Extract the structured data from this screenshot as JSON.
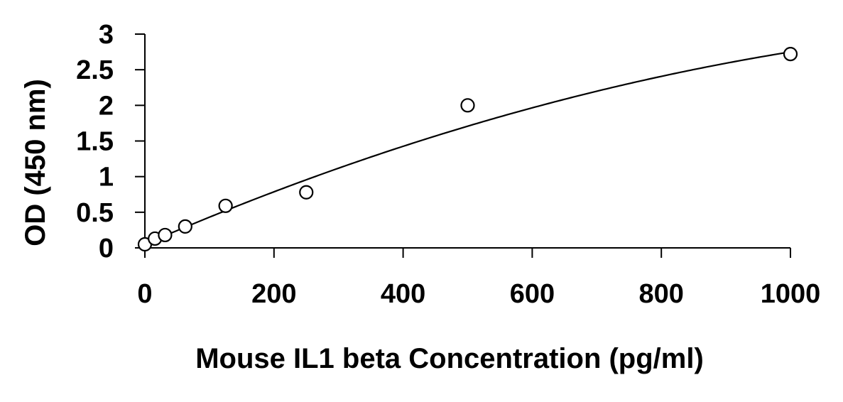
{
  "chart_data": {
    "type": "scatter",
    "title": "",
    "xlabel": "Mouse IL1 beta Concentration (pg/ml)",
    "ylabel": "OD (450 nm)",
    "xlim": [
      0,
      1000
    ],
    "ylim": [
      0,
      3
    ],
    "x_ticks": [
      0,
      200,
      400,
      600,
      800,
      1000
    ],
    "y_ticks": [
      0,
      0.5,
      1,
      1.5,
      2,
      2.5,
      3
    ],
    "x_tick_labels": [
      "0",
      "200",
      "400",
      "600",
      "800",
      "1000"
    ],
    "y_tick_labels": [
      "0",
      "0.5",
      "1",
      "1.5",
      "2",
      "2.5",
      "3"
    ],
    "grid": false,
    "legend": "none",
    "series": [
      {
        "marker": "open-circle",
        "x": [
          0,
          15.6,
          31.25,
          62.5,
          125,
          250,
          500,
          1000
        ],
        "y": [
          0.05,
          0.13,
          0.18,
          0.3,
          0.59,
          0.78,
          2.0,
          2.72
        ]
      }
    ],
    "fit_curve": {
      "type": "polynomial-2",
      "coefficients": [
        0.05,
        0.00393,
        -1.23e-06
      ]
    },
    "colors": {
      "axis": "#000000",
      "marker_stroke": "#000000",
      "marker_fill": "#ffffff",
      "curve": "#000000"
    }
  }
}
